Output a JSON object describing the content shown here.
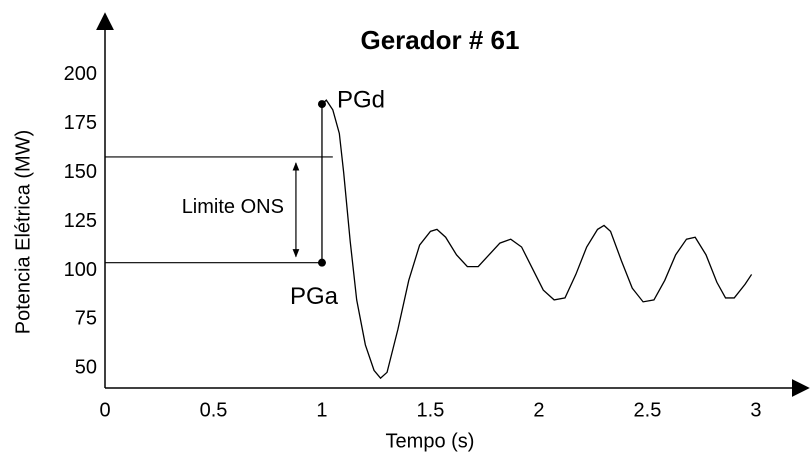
{
  "chart_data": {
    "type": "line",
    "title": "Gerador # 61",
    "xlabel": "Tempo (s)",
    "ylabel": "Potencia Elétrica (MW)",
    "xlim": [
      0,
      3.24
    ],
    "ylim": [
      40,
      231
    ],
    "xticks": [
      0,
      0.5,
      1,
      1.5,
      2,
      2.5,
      3
    ],
    "yticks": [
      50,
      75,
      100,
      125,
      150,
      175,
      200
    ],
    "series": [
      {
        "color": "#000000",
        "x": [
          1.0,
          1.0,
          1.02,
          1.05,
          1.08,
          1.1,
          1.13,
          1.16,
          1.2,
          1.24,
          1.27,
          1.3,
          1.35,
          1.4,
          1.45,
          1.5,
          1.53,
          1.57,
          1.62,
          1.67,
          1.72,
          1.77,
          1.82,
          1.87,
          1.92,
          1.97,
          2.02,
          2.07,
          2.12,
          2.17,
          2.22,
          2.27,
          2.3,
          2.33,
          2.38,
          2.43,
          2.48,
          2.53,
          2.58,
          2.63,
          2.68,
          2.72,
          2.77,
          2.82,
          2.86,
          2.9,
          2.95,
          2.98
        ],
        "values": [
          104,
          185,
          187,
          182,
          170,
          150,
          115,
          85,
          62,
          49,
          45,
          48,
          70,
          95,
          113,
          120,
          121,
          117,
          108,
          102,
          102,
          108,
          114,
          116,
          112,
          101,
          90,
          85,
          86,
          98,
          112,
          121,
          123,
          120,
          105,
          91,
          84,
          85,
          95,
          108,
          116,
          117,
          108,
          94,
          86,
          86,
          93,
          98
        ]
      }
    ],
    "points": [
      {
        "label": "PGd",
        "x": 1,
        "y": 185
      },
      {
        "label": "PGa",
        "x": 1,
        "y": 104
      }
    ],
    "limit": {
      "label": "Limite ONS",
      "upper": 158,
      "lower": 104,
      "x": 0.88,
      "upper_end": 1.05
    }
  }
}
